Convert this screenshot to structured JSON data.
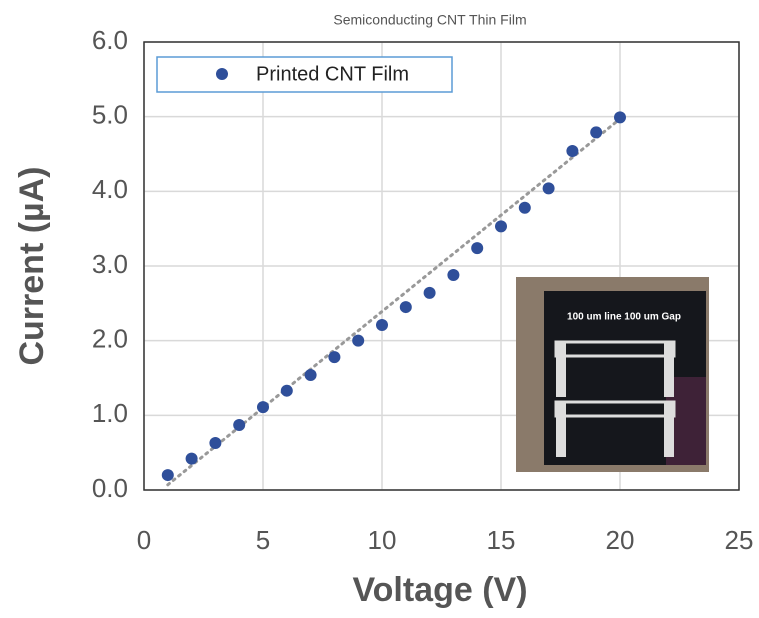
{
  "chart_data": {
    "type": "scatter",
    "title": "Semiconducting CNT Thin Film",
    "x_label": "Voltage (V)",
    "y_label": "Current (µA)",
    "series": [
      {
        "name": "Printed CNT Film",
        "color": "#2f4f9a",
        "x": [
          1,
          2,
          3,
          4,
          5,
          6,
          7,
          8,
          9,
          10,
          11,
          12,
          13,
          14,
          15,
          16,
          17,
          18,
          19,
          20
        ],
        "values": [
          0.2,
          0.42,
          0.63,
          0.87,
          1.11,
          1.33,
          1.54,
          1.78,
          2.0,
          2.21,
          2.45,
          2.64,
          2.88,
          3.24,
          3.53,
          3.78,
          4.04,
          4.54,
          4.79,
          4.99
        ]
      }
    ],
    "trendline": {
      "color": "#999999",
      "x": [
        1,
        20
      ],
      "values": [
        0.07,
        4.97
      ]
    },
    "xlim": [
      0,
      25
    ],
    "xticks": [
      0,
      5,
      10,
      15,
      20,
      25
    ],
    "ylim": [
      0,
      6
    ],
    "yticks": [
      {
        "value": 0,
        "label": "0.0"
      },
      {
        "value": 1,
        "label": "1.0"
      },
      {
        "value": 2,
        "label": "2.0"
      },
      {
        "value": 3,
        "label": "3.0"
      },
      {
        "value": 4,
        "label": "4.0"
      },
      {
        "value": 5,
        "label": "5.0"
      },
      {
        "value": 6,
        "label": "6.0"
      }
    ],
    "grid": true,
    "legend": "top-left",
    "annotations": [
      "100 um line 100 um Gap"
    ]
  }
}
